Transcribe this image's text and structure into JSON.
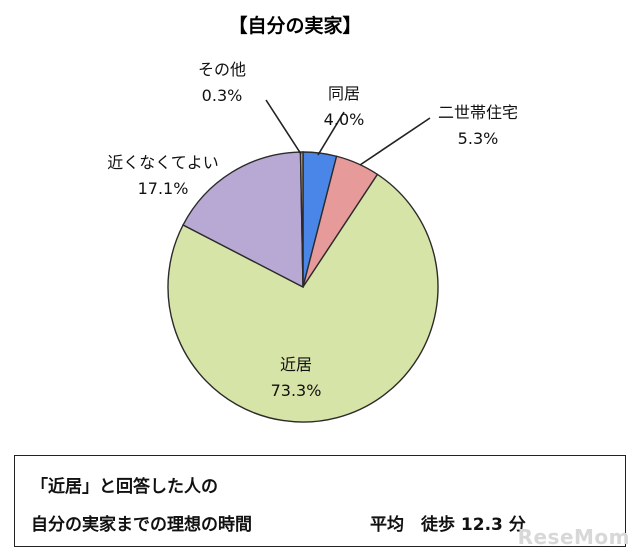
{
  "chart_data": {
    "type": "pie",
    "title": "【自分の実家】",
    "slices": [
      {
        "label": "同居",
        "value": 4.0,
        "display": "4.0%",
        "color": "#4a86e8"
      },
      {
        "label": "二世帯住宅",
        "value": 5.3,
        "display": "5.3%",
        "color": "#e69a9a"
      },
      {
        "label": "近居",
        "value": 73.3,
        "display": "73.3%",
        "color": "#d7e4a7"
      },
      {
        "label": "近くなくてよい",
        "value": 17.1,
        "display": "17.1%",
        "color": "#b7a9d4"
      },
      {
        "label": "その他",
        "value": 0.3,
        "display": "0.3%",
        "color": "#e0b07a"
      }
    ]
  },
  "note": {
    "line1": "「近居」と回答した人の",
    "line2": "自分の実家までの理想の時間",
    "average": "平均　徒歩 12.3 分"
  },
  "watermark": "ReseMom"
}
